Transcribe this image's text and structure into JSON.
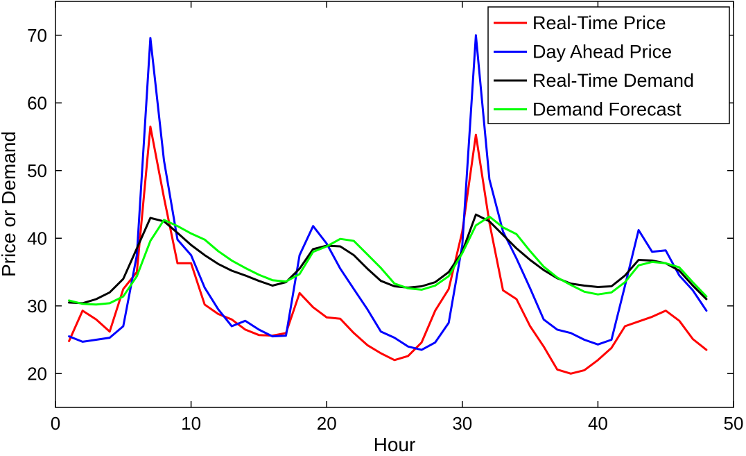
{
  "chart_data": {
    "type": "line",
    "title": "",
    "xlabel": "Hour",
    "ylabel": "Price or Demand",
    "xlim": [
      0,
      50
    ],
    "ylim": [
      15,
      75
    ],
    "xticks": [
      0,
      10,
      20,
      30,
      40,
      50
    ],
    "yticks": [
      20,
      30,
      40,
      50,
      60,
      70
    ],
    "grid": false,
    "legend_position": "top-right",
    "x": [
      1,
      2,
      3,
      4,
      5,
      6,
      7,
      8,
      9,
      10,
      11,
      12,
      13,
      14,
      15,
      16,
      17,
      18,
      19,
      20,
      21,
      22,
      23,
      24,
      25,
      26,
      27,
      28,
      29,
      30,
      31,
      32,
      33,
      34,
      35,
      36,
      37,
      38,
      39,
      40,
      41,
      42,
      43,
      44,
      45,
      46,
      47,
      48
    ],
    "series": [
      {
        "name": "Real-Time Price",
        "color": "#ff0000",
        "values": [
          24.8,
          29.3,
          28.0,
          26.2,
          32.5,
          35.0,
          56.5,
          46.0,
          36.3,
          36.3,
          30.2,
          28.8,
          28.0,
          26.5,
          25.7,
          25.6,
          26.0,
          31.9,
          29.8,
          28.3,
          28.1,
          26.0,
          24.2,
          23.0,
          22.0,
          22.6,
          24.6,
          29.3,
          32.5,
          41.0,
          55.3,
          42.3,
          32.3,
          31.0,
          27.0,
          24.0,
          20.6,
          20.0,
          20.5,
          22.0,
          23.8,
          27.0,
          27.7,
          28.4,
          29.3,
          27.8,
          25.1,
          23.5
        ]
      },
      {
        "name": "Day Ahead Price",
        "color": "#0000ff",
        "values": [
          25.5,
          24.7,
          25.0,
          25.3,
          27.0,
          37.5,
          69.6,
          51.5,
          39.8,
          37.5,
          32.7,
          29.5,
          27.0,
          27.8,
          26.5,
          25.5,
          25.6,
          37.5,
          41.8,
          39.2,
          35.5,
          32.5,
          29.5,
          26.2,
          25.3,
          24.0,
          23.5,
          24.6,
          27.5,
          39.0,
          70.0,
          48.7,
          41.0,
          37.0,
          32.6,
          28.0,
          26.5,
          26.0,
          25.0,
          24.3,
          25.0,
          33.0,
          41.2,
          38.0,
          38.2,
          34.5,
          32.3,
          29.3
        ]
      },
      {
        "name": "Real-Time Demand",
        "color": "#000000",
        "values": [
          30.5,
          30.4,
          31.0,
          32.0,
          34.0,
          38.5,
          43.0,
          42.5,
          40.8,
          39.0,
          37.5,
          36.2,
          35.2,
          34.5,
          33.7,
          33.0,
          33.5,
          35.5,
          38.4,
          38.9,
          38.8,
          37.5,
          35.5,
          33.7,
          32.9,
          32.7,
          32.9,
          33.5,
          35.0,
          38.0,
          43.5,
          42.5,
          40.5,
          38.5,
          36.8,
          35.3,
          34.1,
          33.3,
          33.0,
          32.8,
          32.9,
          34.5,
          36.8,
          36.7,
          36.3,
          35.2,
          33.0,
          31.0
        ]
      },
      {
        "name": "Demand Forecast",
        "color": "#00ff00",
        "values": [
          30.8,
          30.3,
          30.2,
          30.4,
          31.4,
          34.4,
          39.6,
          42.7,
          41.8,
          40.7,
          39.8,
          38.1,
          36.7,
          35.6,
          34.6,
          33.8,
          33.6,
          34.7,
          38.0,
          38.8,
          39.9,
          39.6,
          37.6,
          35.6,
          33.3,
          32.6,
          32.4,
          33.0,
          34.4,
          37.8,
          41.9,
          43.2,
          41.6,
          40.6,
          38.1,
          35.8,
          34.2,
          33.1,
          32.1,
          31.7,
          32.0,
          33.5,
          36.0,
          36.5,
          36.3,
          35.7,
          33.5,
          31.4
        ]
      }
    ]
  }
}
